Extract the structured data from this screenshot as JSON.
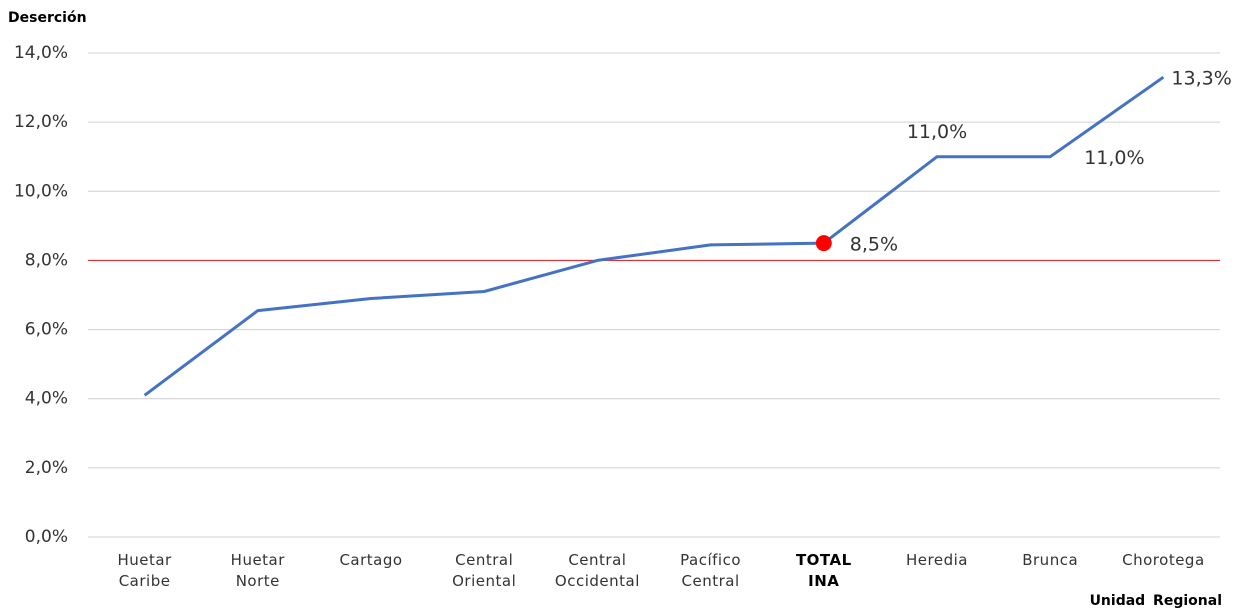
{
  "chart_data": {
    "type": "line",
    "title": "Deserción",
    "x_label": "Unidad Regional",
    "categories": [
      "Huetar Caribe",
      "Huetar Norte",
      "Cartago",
      "Central Oriental",
      "Central Occidental",
      "Pacífico Central",
      "TOTAL INA",
      "Heredia",
      "Brunca",
      "Chorotega"
    ],
    "series": [
      {
        "name": "Deserción",
        "color": "#4472c4",
        "values": [
          4.1,
          6.55,
          6.9,
          7.1,
          8.0,
          8.45,
          8.5,
          11.0,
          11.0,
          13.3
        ],
        "value_labels": [
          null,
          null,
          null,
          null,
          null,
          null,
          "8,5%",
          "11,0%",
          "11,0%",
          "13,3%"
        ]
      }
    ],
    "highlight": "TOTAL INA",
    "highlight_color": "#ff0000",
    "reference_line": 8.0,
    "reference_color": "#e03030",
    "ylim": [
      0,
      14
    ],
    "yticks": [
      {
        "value": 0,
        "label": "0,0%"
      },
      {
        "value": 2,
        "label": "2,0%"
      },
      {
        "value": 4,
        "label": "4,0%"
      },
      {
        "value": 6,
        "label": "6,0%"
      },
      {
        "value": 8,
        "label": "8,0%"
      },
      {
        "value": 10,
        "label": "10,0%"
      },
      {
        "value": 12,
        "label": "12,0%"
      },
      {
        "value": 14,
        "label": "14,0%"
      }
    ],
    "grid": true
  }
}
